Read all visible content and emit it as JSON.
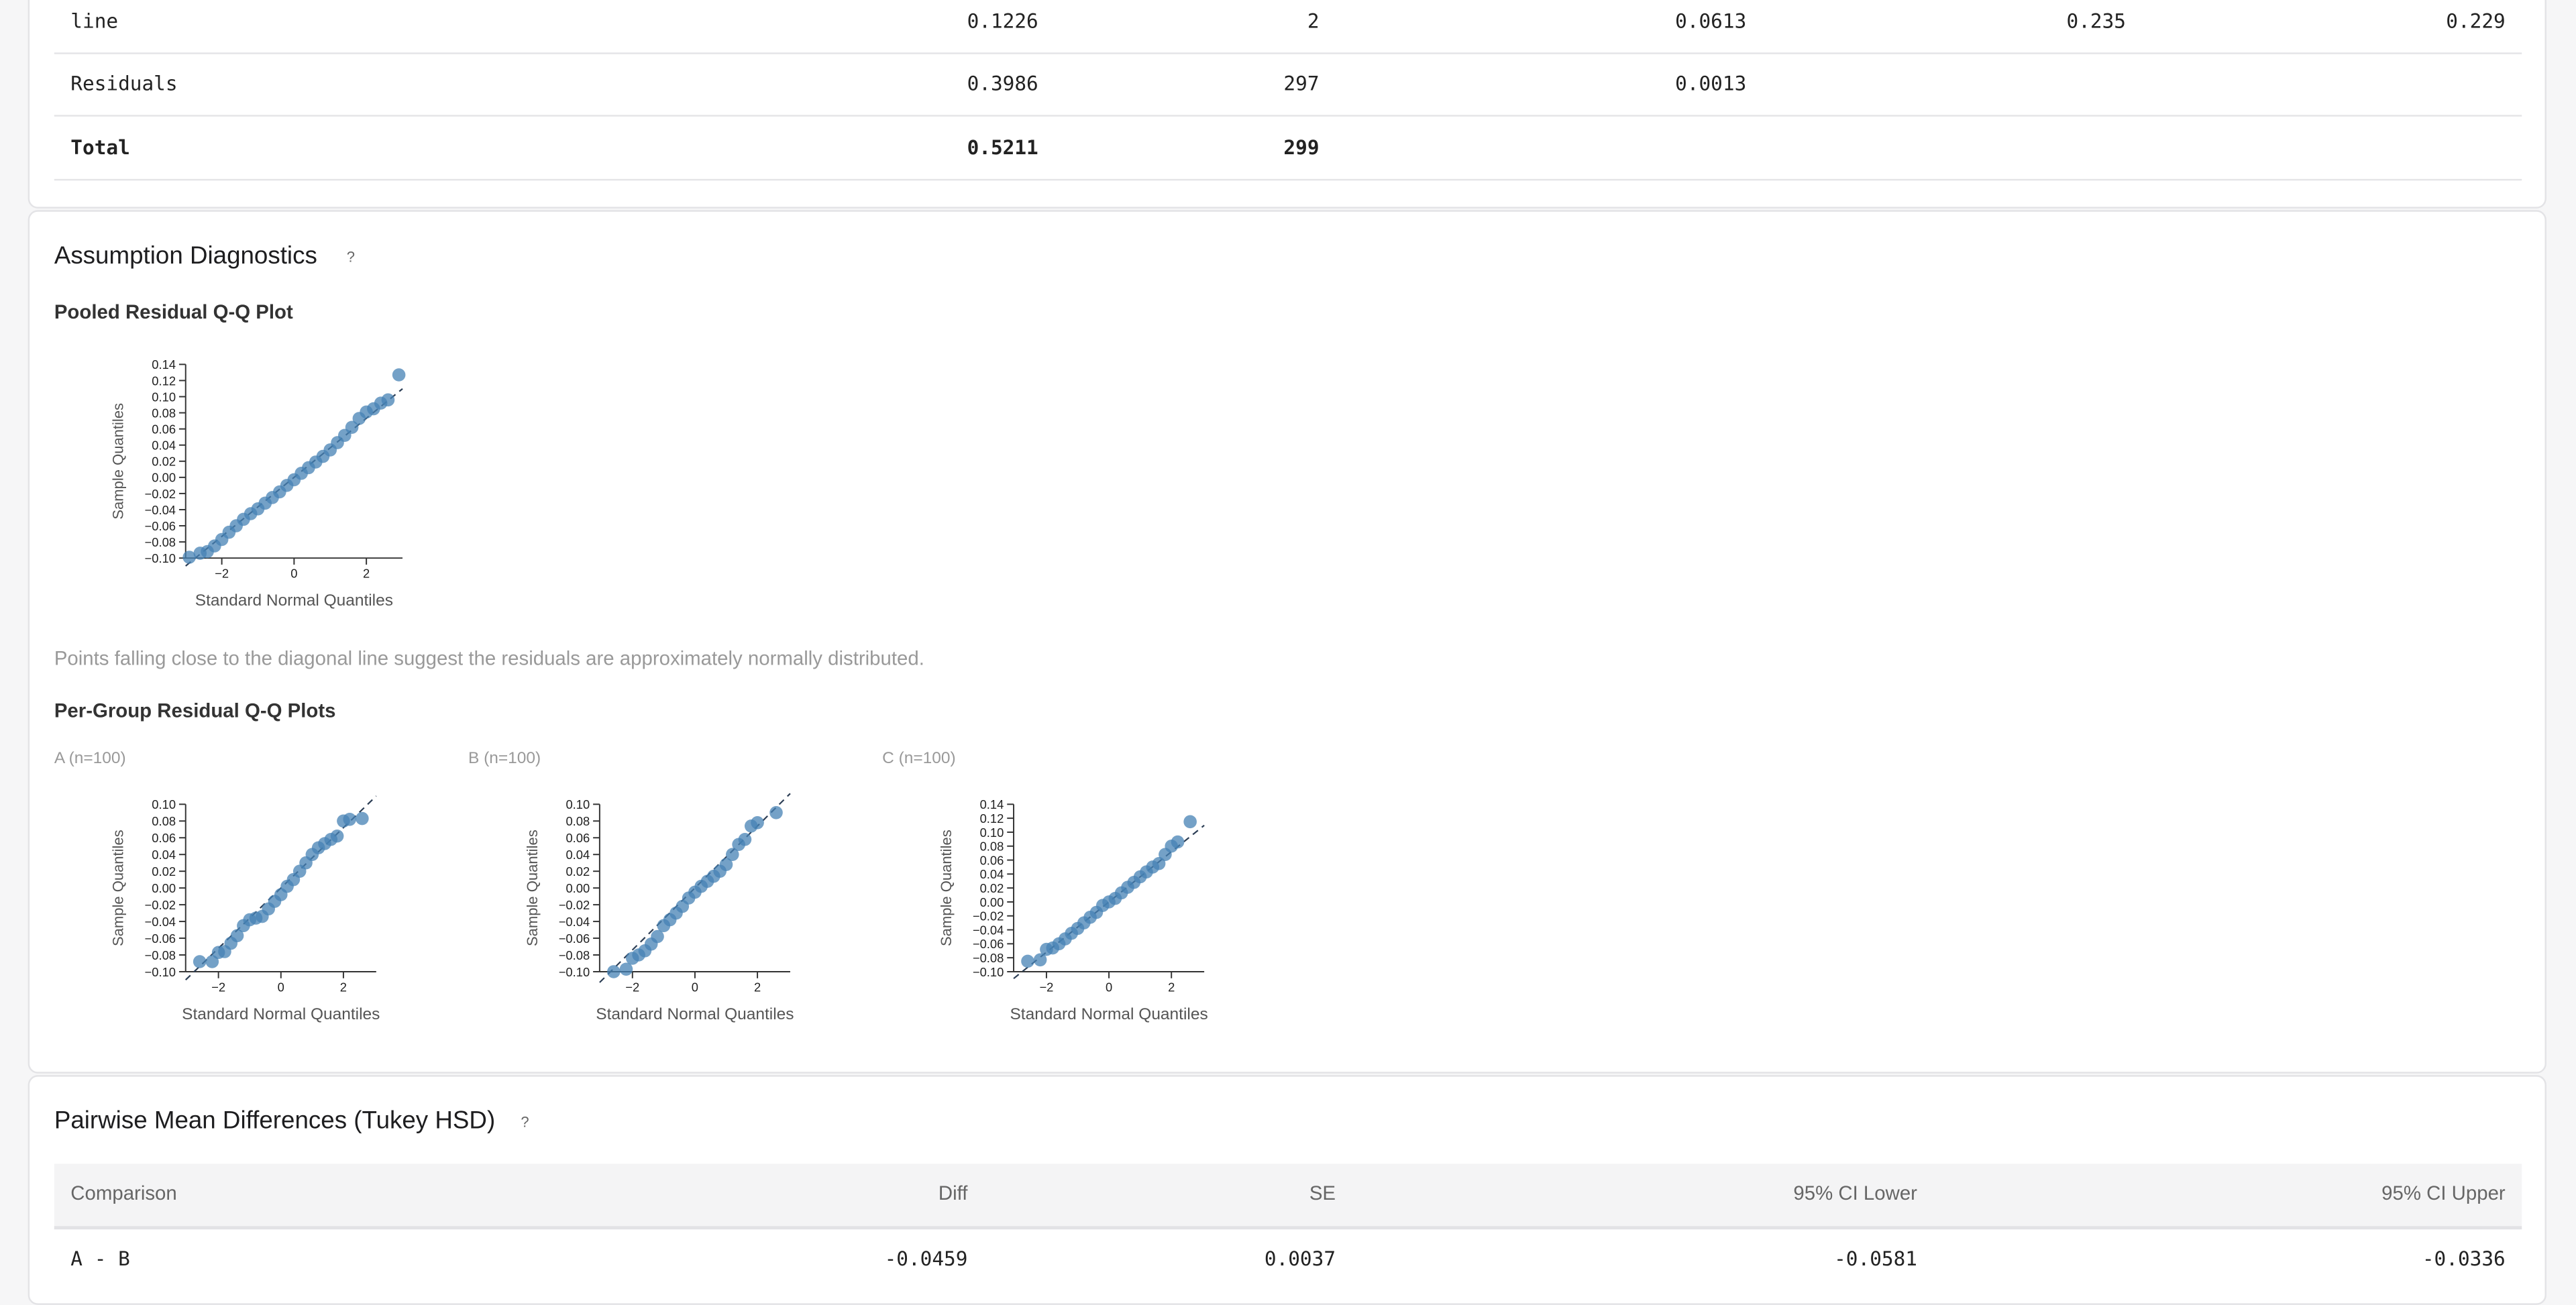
{
  "anova_table": {
    "rows": [
      [
        "line",
        "0.1226",
        "2",
        "0.0613",
        "0.235",
        "0.229"
      ],
      [
        "Residuals",
        "0.3986",
        "297",
        "0.0013"
      ],
      [
        "Total",
        "0.5211",
        "299"
      ]
    ]
  },
  "diagnostics": {
    "title": "Assumption Diagnostics",
    "help": "?",
    "pooled": {
      "title": "Pooled Residual Q-Q Plot",
      "chart": {
        "type": "scatter",
        "xlabel": "Standard Normal Quantiles",
        "ylabel": "Sample Quantiles",
        "color": "#4682b4",
        "xlim": [
          -3,
          3
        ],
        "ylim": [
          -0.1,
          0.14
        ],
        "xticks": [
          {
            "value": -2,
            "label": "−2"
          },
          0,
          {
            "value": 2,
            "label": "2"
          }
        ],
        "yticks": [
          {
            "value": 0.14,
            "label": "0.14"
          },
          {
            "value": 0.12,
            "label": "0.12"
          },
          {
            "value": 0.1,
            "label": "0.10"
          },
          {
            "value": 0.08,
            "label": "0.08"
          },
          {
            "value": 0.06,
            "label": "0.06"
          },
          {
            "value": 0.04,
            "label": "0.04"
          },
          {
            "value": 0.02,
            "label": "0.02"
          },
          {
            "value": 0,
            "label": "0.00"
          },
          {
            "value": -0.02,
            "label": "−0.02"
          },
          {
            "value": -0.04,
            "label": "−0.04"
          },
          {
            "value": -0.06,
            "label": "−0.06"
          },
          {
            "value": -0.08,
            "label": "−0.08"
          },
          {
            "value": -0.1,
            "label": "−0.10"
          }
        ],
        "reference_line": {
          "slope": 0.0366,
          "intercept": 0
        },
        "x": [
          -2.9,
          -2.6,
          -2.4,
          -2.2,
          -2.0,
          -1.8,
          -1.6,
          -1.4,
          -1.2,
          -1.0,
          -0.8,
          -0.6,
          -0.4,
          -0.2,
          0,
          0.2,
          0.4,
          0.6,
          0.8,
          1.0,
          1.2,
          1.4,
          1.6,
          1.8,
          2.0,
          2.2,
          2.4,
          2.6,
          2.9
        ],
        "y": [
          -0.099,
          -0.094,
          -0.092,
          -0.085,
          -0.077,
          -0.068,
          -0.06,
          -0.052,
          -0.045,
          -0.039,
          -0.032,
          -0.025,
          -0.018,
          -0.01,
          -0.003,
          0.005,
          0.012,
          0.019,
          0.026,
          0.034,
          0.043,
          0.052,
          0.062,
          0.073,
          0.081,
          0.085,
          0.092,
          0.096,
          0.127
        ]
      }
    },
    "note": "Points falling close to the diagonal line suggest the residuals are approximately normally distributed.",
    "per_group": {
      "title": "Per-Group Residual Q-Q Plots",
      "plots": [
        {
          "label": "A (n=100)",
          "chart": {
            "type": "scatter",
            "xlabel": "Standard Normal Quantiles",
            "ylabel": "Sample Quantiles",
            "color": "#4682b4",
            "xlim": [
              -3.05,
              3.05
            ],
            "ylim": [
              -0.1,
              0.1
            ],
            "xticks": [
              {
                "value": -2,
                "label": "−2"
              },
              0,
              {
                "value": 2,
                "label": "2"
              }
            ],
            "yticks": [
              {
                "value": 0.1,
                "label": "0.10"
              },
              {
                "value": 0.08,
                "label": "0.08"
              },
              {
                "value": 0.06,
                "label": "0.06"
              },
              {
                "value": 0.04,
                "label": "0.04"
              },
              {
                "value": 0.02,
                "label": "0.02"
              },
              {
                "value": 0,
                "label": "0.00"
              },
              {
                "value": -0.02,
                "label": "−0.02"
              },
              {
                "value": -0.04,
                "label": "−0.04"
              },
              {
                "value": -0.06,
                "label": "−0.06"
              },
              {
                "value": -0.08,
                "label": "−0.08"
              },
              {
                "value": -0.1,
                "label": "−0.10"
              }
            ],
            "reference_line": {
              "slope": 0.036,
              "intercept": 0
            },
            "x": [
              -2.6,
              -2.2,
              -2.0,
              -1.8,
              -1.6,
              -1.4,
              -1.2,
              -1.0,
              -0.8,
              -0.6,
              -0.4,
              -0.2,
              0,
              0.2,
              0.4,
              0.6,
              0.8,
              1.0,
              1.2,
              1.4,
              1.6,
              1.8,
              2.0,
              2.2,
              2.6
            ],
            "y": [
              -0.088,
              -0.088,
              -0.077,
              -0.076,
              -0.066,
              -0.057,
              -0.045,
              -0.038,
              -0.036,
              -0.034,
              -0.025,
              -0.016,
              -0.008,
              0.002,
              0.01,
              0.02,
              0.03,
              0.04,
              0.048,
              0.053,
              0.058,
              0.062,
              0.08,
              0.082,
              0.083
            ]
          }
        },
        {
          "label": "B (n=100)",
          "chart": {
            "type": "scatter",
            "xlabel": "Standard Normal Quantiles",
            "ylabel": "Sample Quantiles",
            "color": "#4682b4",
            "xlim": [
              -3.05,
              3.05
            ],
            "ylim": [
              -0.1,
              0.1
            ],
            "xticks": [
              {
                "value": -2,
                "label": "−2"
              },
              0,
              {
                "value": 2,
                "label": "2"
              }
            ],
            "yticks": [
              {
                "value": 0.1,
                "label": "0.10"
              },
              {
                "value": 0.08,
                "label": "0.08"
              },
              {
                "value": 0.06,
                "label": "0.06"
              },
              {
                "value": 0.04,
                "label": "0.04"
              },
              {
                "value": 0.02,
                "label": "0.02"
              },
              {
                "value": 0,
                "label": "0.00"
              },
              {
                "value": -0.02,
                "label": "−0.02"
              },
              {
                "value": -0.04,
                "label": "−0.04"
              },
              {
                "value": -0.06,
                "label": "−0.06"
              },
              {
                "value": -0.08,
                "label": "−0.08"
              },
              {
                "value": -0.1,
                "label": "−0.10"
              }
            ],
            "reference_line": {
              "slope": 0.037,
              "intercept": 0
            },
            "x": [
              -2.6,
              -2.2,
              -2.0,
              -1.8,
              -1.6,
              -1.4,
              -1.2,
              -1.0,
              -0.8,
              -0.6,
              -0.4,
              -0.2,
              0,
              0.2,
              0.4,
              0.6,
              0.8,
              1.0,
              1.2,
              1.4,
              1.6,
              1.8,
              2.0,
              2.6
            ],
            "y": [
              -0.1,
              -0.097,
              -0.084,
              -0.08,
              -0.075,
              -0.067,
              -0.058,
              -0.045,
              -0.038,
              -0.03,
              -0.022,
              -0.012,
              -0.005,
              0.002,
              0.008,
              0.014,
              0.02,
              0.028,
              0.04,
              0.052,
              0.058,
              0.074,
              0.078,
              0.09
            ]
          }
        },
        {
          "label": "C (n=100)",
          "chart": {
            "type": "scatter",
            "xlabel": "Standard Normal Quantiles",
            "ylabel": "Sample Quantiles",
            "color": "#4682b4",
            "xlim": [
              -3.05,
              3.05
            ],
            "ylim": [
              -0.1,
              0.14
            ],
            "xticks": [
              {
                "value": -2,
                "label": "−2"
              },
              0,
              {
                "value": 2,
                "label": "2"
              }
            ],
            "yticks": [
              {
                "value": 0.14,
                "label": "0.14"
              },
              {
                "value": 0.12,
                "label": "0.12"
              },
              {
                "value": 0.1,
                "label": "0.10"
              },
              {
                "value": 0.08,
                "label": "0.08"
              },
              {
                "value": 0.06,
                "label": "0.06"
              },
              {
                "value": 0.04,
                "label": "0.04"
              },
              {
                "value": 0.02,
                "label": "0.02"
              },
              {
                "value": 0,
                "label": "0.00"
              },
              {
                "value": -0.02,
                "label": "−0.02"
              },
              {
                "value": -0.04,
                "label": "−0.04"
              },
              {
                "value": -0.06,
                "label": "−0.06"
              },
              {
                "value": -0.08,
                "label": "−0.08"
              },
              {
                "value": -0.1,
                "label": "−0.10"
              }
            ],
            "reference_line": {
              "slope": 0.036,
              "intercept": 0
            },
            "x": [
              -2.6,
              -2.2,
              -2.0,
              -1.8,
              -1.6,
              -1.4,
              -1.2,
              -1.0,
              -0.8,
              -0.6,
              -0.4,
              -0.2,
              0,
              0.2,
              0.4,
              0.6,
              0.8,
              1.0,
              1.2,
              1.4,
              1.6,
              1.8,
              2.0,
              2.2,
              2.6
            ],
            "y": [
              -0.085,
              -0.083,
              -0.068,
              -0.066,
              -0.06,
              -0.053,
              -0.045,
              -0.038,
              -0.03,
              -0.022,
              -0.015,
              -0.005,
              0,
              0.005,
              0.013,
              0.021,
              0.028,
              0.036,
              0.043,
              0.05,
              0.055,
              0.068,
              0.08,
              0.086,
              0.115
            ]
          }
        }
      ]
    }
  },
  "pairwise": {
    "title": "Pairwise Mean Differences (Tukey HSD)",
    "help": "?",
    "table": {
      "headers": [
        "Comparison",
        "Diff",
        "SE",
        "95% CI Lower",
        "95% CI Upper"
      ],
      "rows": [
        [
          "A - B",
          "-0.0459",
          "0.0037",
          "-0.0581",
          "-0.0336"
        ]
      ]
    }
  }
}
